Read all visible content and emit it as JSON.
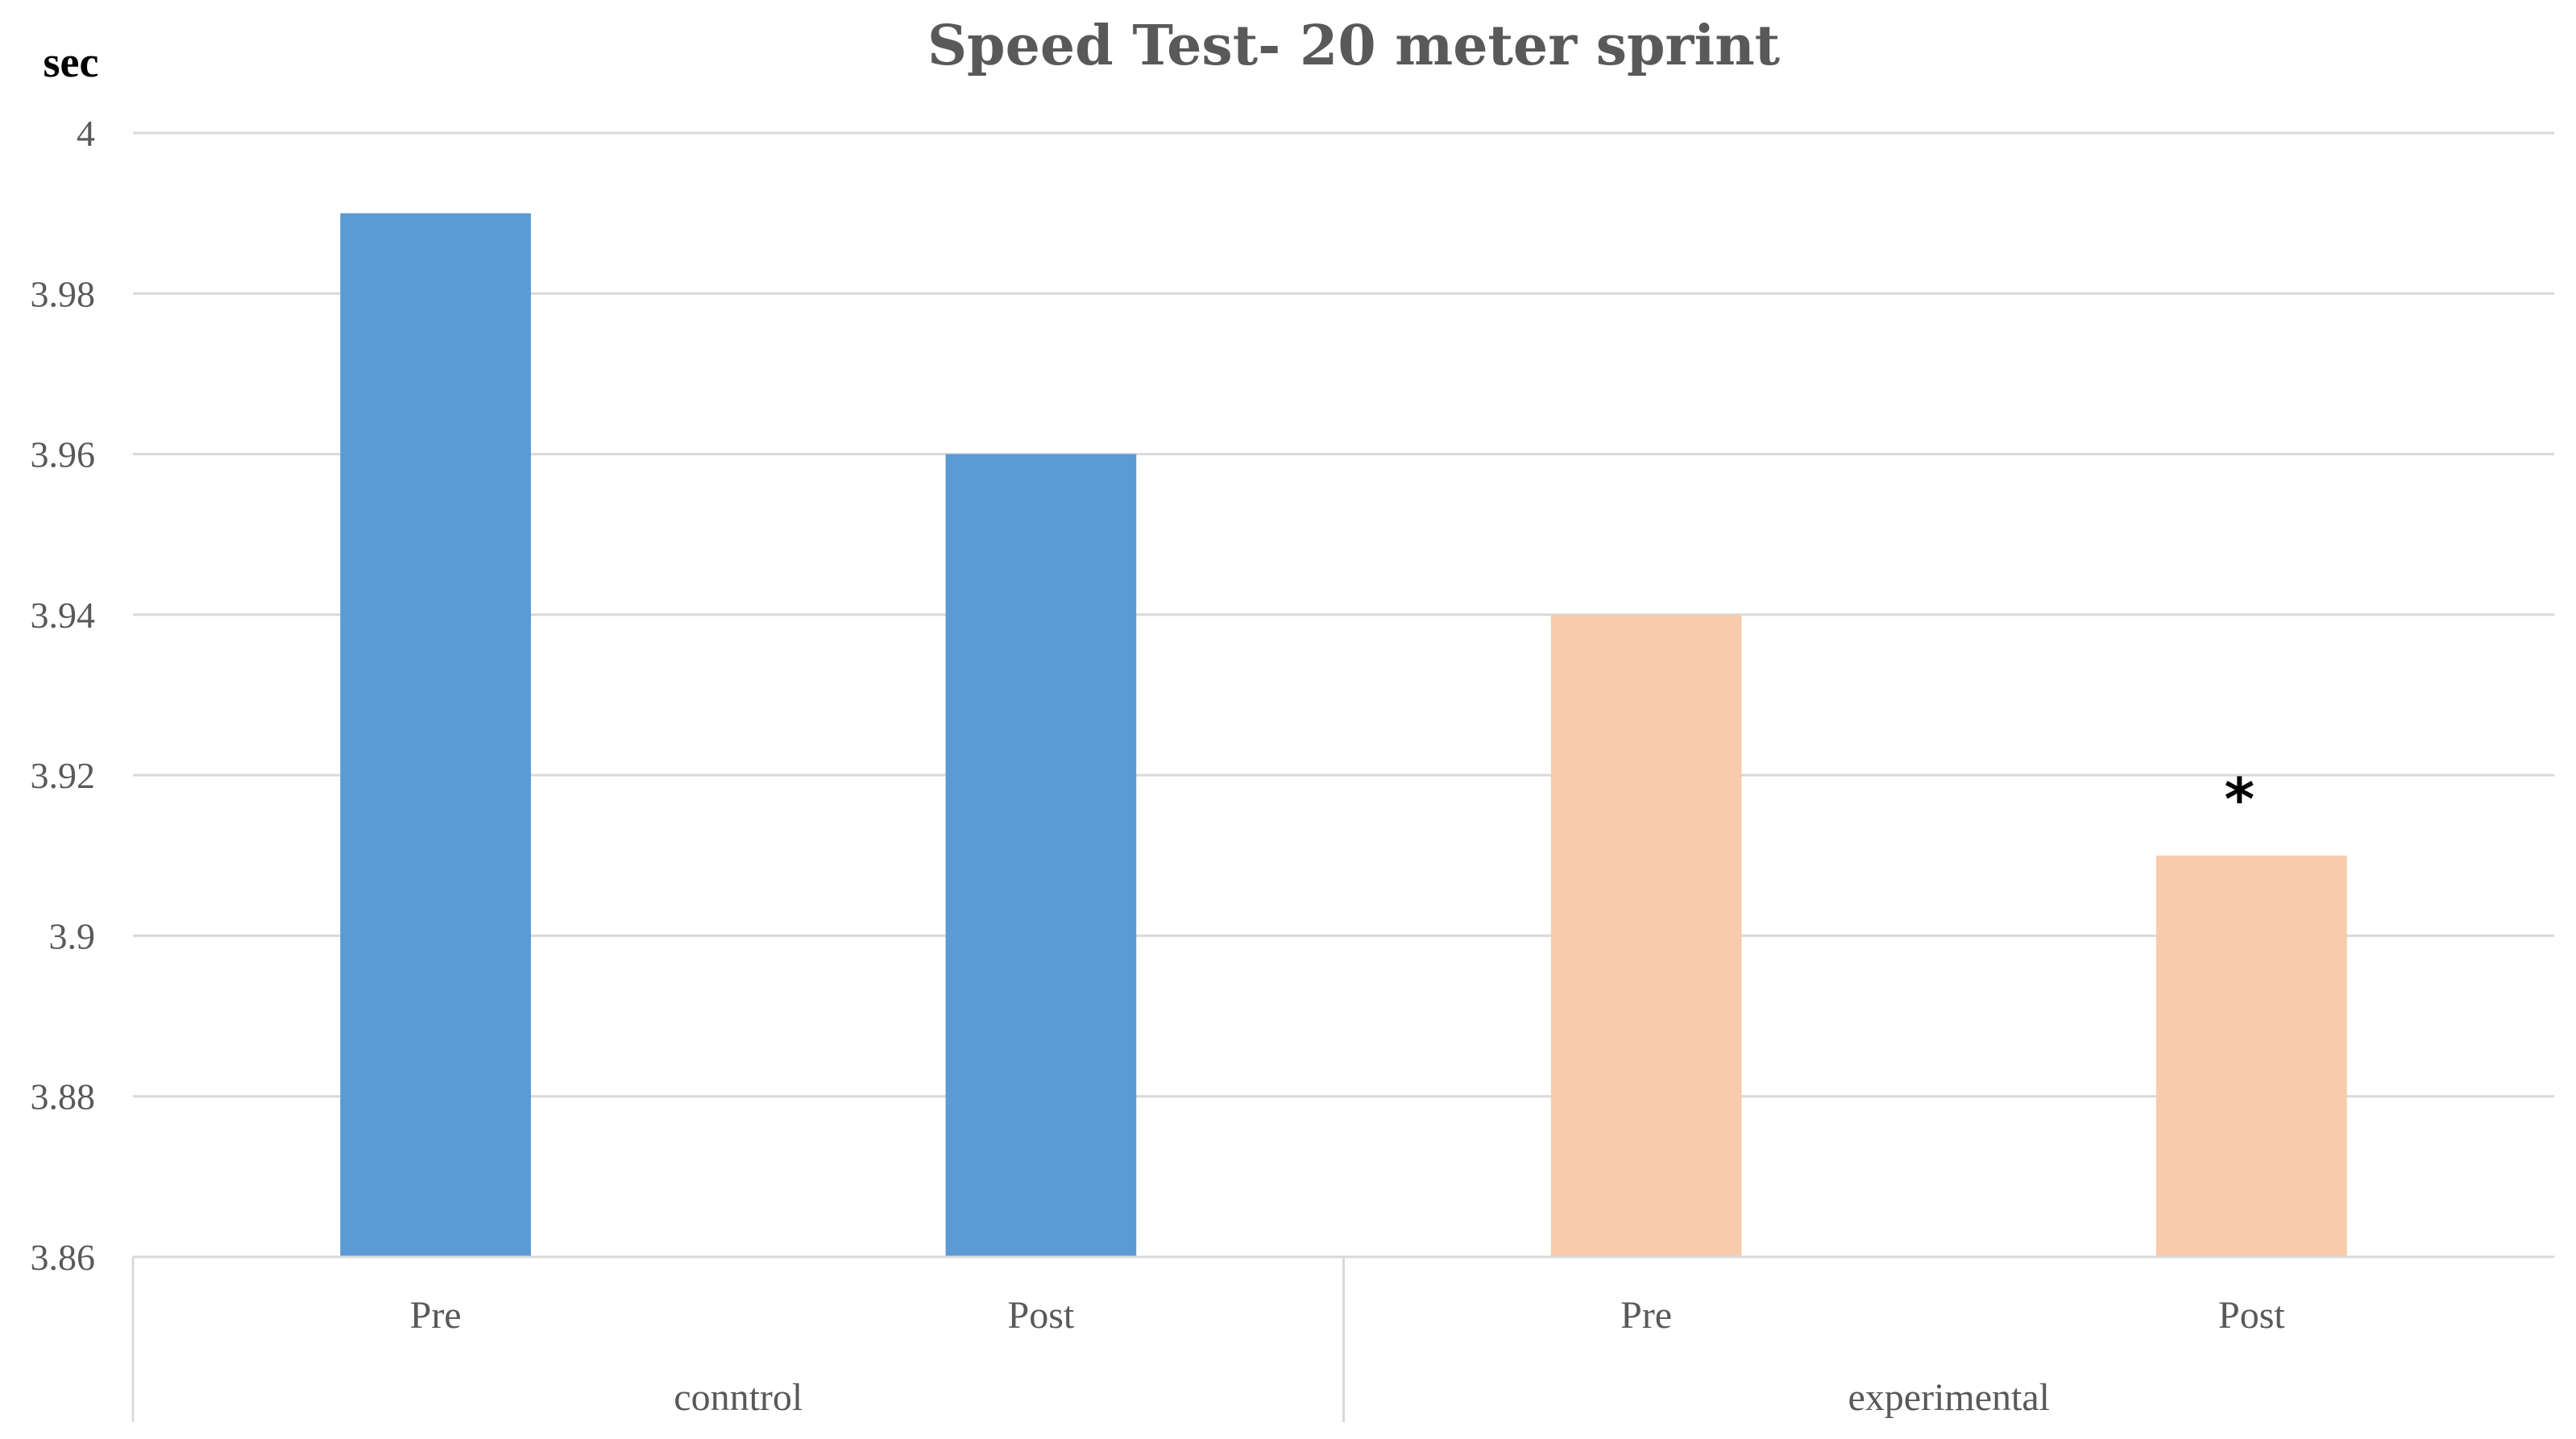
{
  "chart_data": {
    "type": "bar",
    "title": "Speed Test- 20 meter sprint",
    "ylabel": "sec",
    "xlabel": "",
    "ylim": [
      3.86,
      4.0
    ],
    "yticks": [
      "4",
      "3.98",
      "3.96",
      "3.94",
      "3.92",
      "3.9",
      "3.88",
      "3.86"
    ],
    "ytick_values": [
      4.0,
      3.98,
      3.96,
      3.94,
      3.92,
      3.9,
      3.88,
      3.86
    ],
    "categories": [
      "Pre",
      "Post",
      "Pre",
      "Post"
    ],
    "groups": [
      {
        "label": "conntrol",
        "members": [
          0,
          1
        ]
      },
      {
        "label": "experimental",
        "members": [
          2,
          3
        ]
      }
    ],
    "values": [
      3.99,
      3.96,
      3.94,
      3.91
    ],
    "bar_colors": [
      "#5b9bd5",
      "#5b9bd5",
      "#f8cbad",
      "#f8cbad"
    ],
    "annotations": [
      {
        "category_index": 3,
        "text": "*"
      }
    ],
    "grid": true,
    "legend": "none"
  }
}
